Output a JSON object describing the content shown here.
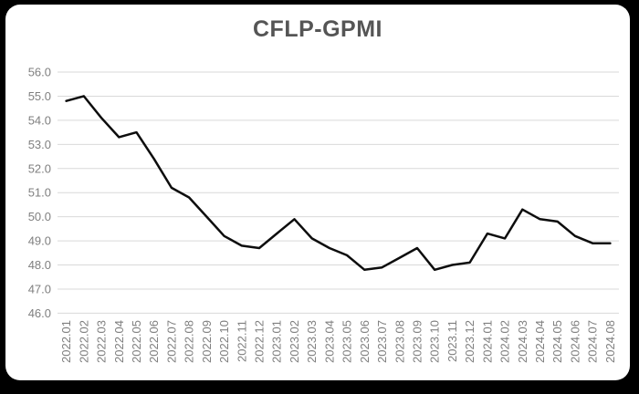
{
  "window": {
    "background_color": "#000000",
    "card_color": "#ffffff"
  },
  "chart_data": {
    "type": "line",
    "title": "CFLP-GPMI",
    "xlabel": "",
    "ylabel": "",
    "ylim": [
      46.0,
      56.0
    ],
    "grid": "horizontal",
    "legend": "none",
    "ytick_labels": [
      "56.0",
      "55.0",
      "54.0",
      "53.0",
      "52.0",
      "51.0",
      "50.0",
      "49.0",
      "48.0",
      "47.0",
      "46.0"
    ],
    "x": [
      "2022.01",
      "2022.02",
      "2022.03",
      "2022.04",
      "2022.05",
      "2022.06",
      "2022.07",
      "2022.08",
      "2022.09",
      "2022.10",
      "2022.11",
      "2022.12",
      "2023.01",
      "2023.02",
      "2023.03",
      "2023.04",
      "2023.05",
      "2023.06",
      "2023.07",
      "2023.08",
      "2023.09",
      "2023.10",
      "2023.11",
      "2023.12",
      "2024.01",
      "2024.02",
      "2024.03",
      "2024.04",
      "2024.05",
      "2024.06",
      "2024.07",
      "2024.08"
    ],
    "series": [
      {
        "name": "CFLP-GPMI",
        "values": [
          54.8,
          55.0,
          54.1,
          53.3,
          53.5,
          52.4,
          51.2,
          50.8,
          50.0,
          49.2,
          48.8,
          48.7,
          49.3,
          49.9,
          49.1,
          48.7,
          48.4,
          47.8,
          47.9,
          48.3,
          48.7,
          47.8,
          48.0,
          48.1,
          49.3,
          49.1,
          50.3,
          49.9,
          49.8,
          49.2,
          48.9,
          48.9
        ]
      }
    ],
    "colors": {
      "line": "#0d0d0d",
      "gridline": "#d9d9d9",
      "tick_label": "#7f7f7f",
      "title": "#555555"
    }
  }
}
